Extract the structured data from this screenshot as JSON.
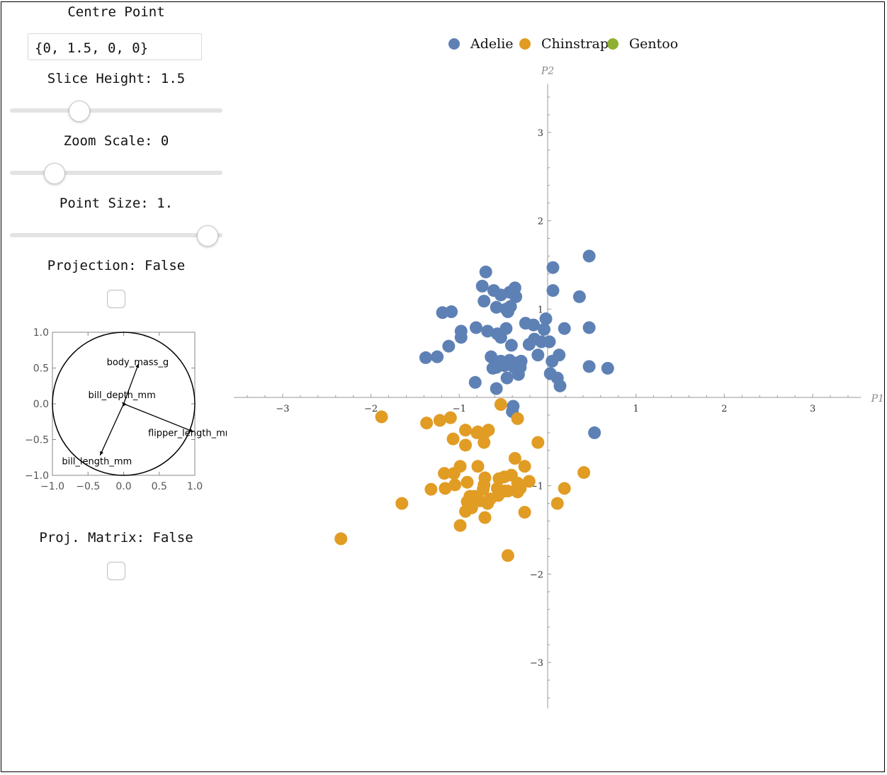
{
  "controls": {
    "centre_point_label": "Centre Point",
    "centre_point_value": "{0, 1.5, 0, 0}",
    "slice_height_label": "Slice Height: 1.5",
    "slice_height_fraction": 0.325,
    "zoom_scale_label": "Zoom Scale: 0",
    "zoom_scale_fraction": 0.21,
    "point_size_label": "Point Size: 1.",
    "point_size_fraction": 0.93,
    "projection_label": "Projection: False",
    "projection_checked": false,
    "proj_matrix_label": "Proj. Matrix: False",
    "proj_matrix_checked": false
  },
  "colors": {
    "adelie": "#5e81b5",
    "chinstrap": "#e19c24",
    "gentoo": "#8fb032"
  },
  "axis_circle": {
    "xticks": [
      "−1.0",
      "−0.5",
      "0.0",
      "0.5",
      "1.0"
    ],
    "yticks": [
      "1.0",
      "0.5",
      "0.0",
      "−0.5",
      "−1.0"
    ],
    "vectors": [
      {
        "name": "body_mass_g",
        "x": 0.21,
        "y": 0.56
      },
      {
        "name": "bill_depth_mm",
        "x": -0.02,
        "y": 0.02
      },
      {
        "name": "flipper_length_mm",
        "x": 0.98,
        "y": -0.39
      },
      {
        "name": "bill_length_mm",
        "x": -0.33,
        "y": -0.72
      }
    ]
  },
  "chart_data": {
    "type": "scatter",
    "xlabel": "P1",
    "ylabel": "P2",
    "xlim": [
      -3.55,
      3.55
    ],
    "ylim": [
      -3.55,
      3.55
    ],
    "xticks": [
      -3,
      -2,
      -1,
      1,
      2,
      3
    ],
    "yticks": [
      3,
      2,
      1,
      -1,
      -2,
      -3
    ],
    "legend_position": "top",
    "series": [
      {
        "name": "Adelie",
        "color": "#5e81b5",
        "points": [
          [
            0.47,
            1.6
          ],
          [
            0.06,
            1.47
          ],
          [
            -0.7,
            1.42
          ],
          [
            -0.74,
            1.26
          ],
          [
            -0.61,
            1.21
          ],
          [
            -0.37,
            1.24
          ],
          [
            -0.43,
            1.19
          ],
          [
            -0.53,
            1.16
          ],
          [
            0.06,
            1.21
          ],
          [
            0.36,
            1.14
          ],
          [
            -0.72,
            1.09
          ],
          [
            -0.36,
            1.14
          ],
          [
            -1.19,
            0.96
          ],
          [
            -1.09,
            0.97
          ],
          [
            -0.58,
            1.02
          ],
          [
            -0.47,
            1.0
          ],
          [
            -0.42,
            1.03
          ],
          [
            -0.45,
            0.97
          ],
          [
            -0.02,
            0.89
          ],
          [
            -0.81,
            0.79
          ],
          [
            -0.98,
            0.75
          ],
          [
            -0.68,
            0.75
          ],
          [
            -0.57,
            0.72
          ],
          [
            -0.47,
            0.78
          ],
          [
            -0.25,
            0.84
          ],
          [
            -0.16,
            0.82
          ],
          [
            -0.04,
            0.77
          ],
          [
            0.19,
            0.78
          ],
          [
            0.47,
            0.79
          ],
          [
            -0.98,
            0.68
          ],
          [
            -0.53,
            0.68
          ],
          [
            -0.41,
            0.59
          ],
          [
            -0.07,
            0.63
          ],
          [
            -0.15,
            0.66
          ],
          [
            -0.21,
            0.6
          ],
          [
            0.02,
            0.63
          ],
          [
            -1.12,
            0.58
          ],
          [
            -1.38,
            0.45
          ],
          [
            -1.25,
            0.46
          ],
          [
            -0.64,
            0.46
          ],
          [
            -0.53,
            0.41
          ],
          [
            -0.43,
            0.42
          ],
          [
            -0.3,
            0.41
          ],
          [
            -0.35,
            0.39
          ],
          [
            -0.11,
            0.48
          ],
          [
            0.13,
            0.48
          ],
          [
            0.05,
            0.41
          ],
          [
            -0.58,
            0.34
          ],
          [
            -0.49,
            0.36
          ],
          [
            -0.62,
            0.33
          ],
          [
            -0.38,
            0.34
          ],
          [
            -0.31,
            0.34
          ],
          [
            0.47,
            0.35
          ],
          [
            0.68,
            0.33
          ],
          [
            -0.46,
            0.22
          ],
          [
            -0.33,
            0.26
          ],
          [
            0.03,
            0.27
          ],
          [
            0.11,
            0.22
          ],
          [
            -0.82,
            0.17
          ],
          [
            0.14,
            0.13
          ],
          [
            -0.58,
            0.1
          ],
          [
            -0.39,
            -0.1
          ],
          [
            -0.4,
            -0.16
          ],
          [
            0.53,
            -0.4
          ]
        ]
      },
      {
        "name": "Chinstrap",
        "color": "#e19c24",
        "points": [
          [
            -0.53,
            -0.08
          ],
          [
            -1.88,
            -0.22
          ],
          [
            -1.22,
            -0.26
          ],
          [
            -1.1,
            -0.23
          ],
          [
            -0.34,
            -0.24
          ],
          [
            -1.37,
            -0.29
          ],
          [
            -0.93,
            -0.37
          ],
          [
            -0.67,
            -0.37
          ],
          [
            -0.79,
            -0.39
          ],
          [
            -0.72,
            -0.41
          ],
          [
            -0.8,
            -0.4
          ],
          [
            -0.11,
            -0.51
          ],
          [
            -1.07,
            -0.47
          ],
          [
            -0.93,
            -0.54
          ],
          [
            -0.72,
            -0.51
          ],
          [
            -0.37,
            -0.69
          ],
          [
            -0.99,
            -0.78
          ],
          [
            -0.79,
            -0.78
          ],
          [
            -0.26,
            -0.78
          ],
          [
            -1.17,
            -0.86
          ],
          [
            -1.06,
            -0.86
          ],
          [
            -0.49,
            -0.9
          ],
          [
            -0.41,
            -0.88
          ],
          [
            -0.71,
            -0.91
          ],
          [
            -0.55,
            -0.92
          ],
          [
            0.41,
            -0.85
          ],
          [
            -0.91,
            -0.96
          ],
          [
            -0.72,
            -0.99
          ],
          [
            -1.05,
            -0.99
          ],
          [
            -0.34,
            -0.97
          ],
          [
            -0.21,
            -0.95
          ],
          [
            -0.57,
            -1.03
          ],
          [
            -1.32,
            -1.04
          ],
          [
            -1.16,
            -1.03
          ],
          [
            -0.73,
            -1.04
          ],
          [
            -0.49,
            -1.06
          ],
          [
            -0.31,
            -1.03
          ],
          [
            -0.34,
            -1.07
          ],
          [
            0.19,
            -1.03
          ],
          [
            -0.88,
            -1.12
          ],
          [
            -0.83,
            -1.12
          ],
          [
            -0.65,
            -1.15
          ],
          [
            -0.56,
            -1.11
          ],
          [
            -0.45,
            -1.06
          ],
          [
            -0.91,
            -1.18
          ],
          [
            -0.77,
            -1.17
          ],
          [
            -0.68,
            -1.2
          ],
          [
            -0.86,
            -1.25
          ],
          [
            -0.93,
            -1.29
          ],
          [
            -1.65,
            -1.2
          ],
          [
            0.11,
            -1.2
          ],
          [
            -0.26,
            -1.3
          ],
          [
            -0.71,
            -1.36
          ],
          [
            -0.99,
            -1.45
          ],
          [
            -2.34,
            -1.6
          ],
          [
            -0.45,
            -1.79
          ]
        ]
      },
      {
        "name": "Gentoo",
        "color": "#8fb032",
        "points": []
      }
    ]
  }
}
